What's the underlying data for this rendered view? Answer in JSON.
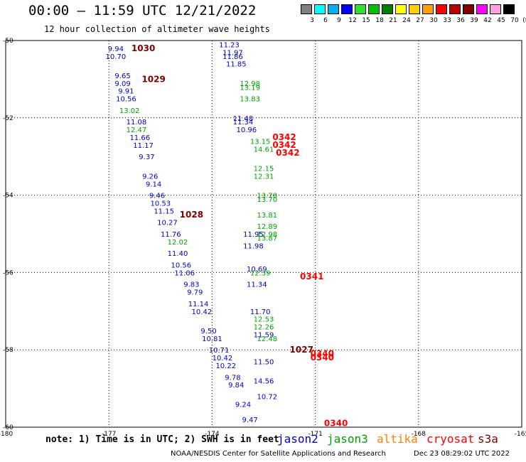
{
  "header": {
    "title": "00:00 — 11:59 UTC 12/21/2022",
    "subtitle": "12 hour collection of altimeter wave heights"
  },
  "colorbar": {
    "unit": "(ft)",
    "labels": [
      "3",
      "6",
      "9",
      "12",
      "15",
      "18",
      "21",
      "24",
      "27",
      "30",
      "33",
      "36",
      "39",
      "42",
      "45",
      "70"
    ],
    "colors": [
      "#808080",
      "#00ffff",
      "#00b0f0",
      "#0000ff",
      "#30e030",
      "#00c000",
      "#008000",
      "#ffff00",
      "#ffd000",
      "#ffa000",
      "#ff0000",
      "#c00000",
      "#800000",
      "#ff00ff",
      "#ffa0e0",
      "#000000"
    ]
  },
  "chart_data": {
    "type": "scatter",
    "title": "00:00 — 11:59 UTC 12/21/2022",
    "xlabel": "",
    "ylabel": "",
    "xlim": [
      -180,
      -165
    ],
    "ylim": [
      -60,
      -50
    ],
    "xticks": [
      "-180",
      "-177",
      "-174",
      "-171",
      "-168",
      "-165"
    ],
    "yticks": [
      "-50",
      "-52",
      "-54",
      "-56",
      "-58",
      "-60"
    ],
    "grid": true,
    "series": [
      {
        "name": "jason2",
        "color": "#0000c8",
        "points": [
          [
            -176.8,
            -50.2,
            "9.94"
          ],
          [
            -176.8,
            -50.4,
            "10.70"
          ],
          [
            -176.6,
            -50.9,
            "9.65"
          ],
          [
            -176.6,
            -51.1,
            "9.09"
          ],
          [
            -176.5,
            -51.3,
            "9.91"
          ],
          [
            -176.5,
            -51.5,
            "10.56"
          ],
          [
            -176.2,
            -52.1,
            "11.08"
          ],
          [
            -176.1,
            -52.5,
            "11.66"
          ],
          [
            -176.0,
            -52.7,
            "11.17"
          ],
          [
            -175.9,
            -53.0,
            "9.37"
          ],
          [
            -175.8,
            -53.5,
            "9.26"
          ],
          [
            -175.7,
            -53.7,
            "9.14"
          ],
          [
            -175.6,
            -54.0,
            "9.46"
          ],
          [
            -175.5,
            -54.2,
            "10.53"
          ],
          [
            -175.4,
            -54.4,
            "11.15"
          ],
          [
            -175.3,
            -54.7,
            "10.27"
          ],
          [
            -175.2,
            -55.0,
            "11.76"
          ],
          [
            -175.0,
            -55.5,
            "11.40"
          ],
          [
            -174.9,
            -55.8,
            "10.56"
          ],
          [
            -174.8,
            -56.0,
            "11.06"
          ],
          [
            -174.6,
            -56.3,
            "9.83"
          ],
          [
            -174.5,
            -56.5,
            "9.79"
          ],
          [
            -174.4,
            -56.8,
            "11.14"
          ],
          [
            -174.3,
            -57.0,
            "10.42"
          ],
          [
            -174.1,
            -57.5,
            "9.50"
          ],
          [
            -174.0,
            -57.7,
            "10.81"
          ],
          [
            -173.8,
            -58.0,
            "10.71"
          ],
          [
            -173.7,
            -58.2,
            "10.42"
          ],
          [
            -173.6,
            -58.4,
            "10.22"
          ],
          [
            -173.4,
            -58.7,
            "9.78"
          ],
          [
            -173.3,
            -58.9,
            "9.84"
          ],
          [
            -173.1,
            -59.4,
            "9.24"
          ],
          [
            -172.9,
            -59.8,
            "9.47"
          ],
          [
            -173.5,
            -50.1,
            "11.23"
          ],
          [
            -173.4,
            -50.3,
            "11.97"
          ],
          [
            -173.4,
            -50.4,
            "11.86"
          ],
          [
            -173.3,
            -50.6,
            "11.85"
          ],
          [
            -173.1,
            -52.0,
            "11.48"
          ],
          [
            -173.1,
            -52.1,
            "11.34"
          ],
          [
            -173.0,
            -52.3,
            "10.96"
          ],
          [
            -172.8,
            -55.0,
            "11.95"
          ],
          [
            -172.8,
            -55.3,
            "11.98"
          ],
          [
            -172.7,
            -55.9,
            "10.69"
          ],
          [
            -172.7,
            -56.3,
            "11.34"
          ],
          [
            -172.6,
            -57.0,
            "11.70"
          ],
          [
            -172.5,
            -57.6,
            "11.59"
          ],
          [
            -172.5,
            -58.3,
            "11.50"
          ],
          [
            -172.5,
            -58.8,
            "14.56"
          ],
          [
            -172.4,
            -59.2,
            "10.72"
          ]
        ]
      },
      {
        "name": "jason3",
        "color": "#00a000",
        "points": [
          [
            -176.4,
            -51.8,
            "13.02"
          ],
          [
            -176.2,
            -52.3,
            "12.47"
          ],
          [
            -175.0,
            -55.2,
            "12.02"
          ],
          [
            -172.9,
            -51.1,
            "12.98"
          ],
          [
            -172.9,
            -51.2,
            "13.19"
          ],
          [
            -172.9,
            -51.5,
            "13.83"
          ],
          [
            -172.6,
            -52.6,
            "13.15"
          ],
          [
            -172.5,
            -52.8,
            "14.61"
          ],
          [
            -172.5,
            -53.3,
            "12.15"
          ],
          [
            -172.5,
            -53.5,
            "12.31"
          ],
          [
            -172.4,
            -54.0,
            "13.78"
          ],
          [
            -172.4,
            -54.1,
            "13.70"
          ],
          [
            -172.4,
            -54.5,
            "13.81"
          ],
          [
            -172.4,
            -54.8,
            "12.89"
          ],
          [
            -172.4,
            -55.0,
            "12.98"
          ],
          [
            -172.4,
            -55.1,
            "13.87"
          ],
          [
            -172.6,
            -56.0,
            "12.39"
          ],
          [
            -172.5,
            -57.2,
            "12.53"
          ],
          [
            -172.5,
            -57.4,
            "12.26"
          ],
          [
            -172.4,
            -57.7,
            "12.48"
          ]
        ]
      },
      {
        "name": "altika",
        "color": "#ff8000",
        "points": []
      },
      {
        "name": "cryosat",
        "color": "#ff0000",
        "points": [
          [
            -171.9,
            -52.5,
            "0342"
          ],
          [
            -171.9,
            -52.7,
            "0342"
          ],
          [
            -171.8,
            -52.9,
            "0342"
          ],
          [
            -171.1,
            -56.1,
            "0341"
          ],
          [
            -170.8,
            -58.1,
            "0340"
          ],
          [
            -170.8,
            -58.2,
            "0340"
          ],
          [
            -170.4,
            -59.9,
            "0340"
          ]
        ]
      },
      {
        "name": "s3a",
        "color": "#800000",
        "points": [
          [
            -176.0,
            -50.2,
            "1030"
          ],
          [
            -175.7,
            -51.0,
            "1029"
          ],
          [
            -174.6,
            -54.5,
            "1028"
          ],
          [
            -171.4,
            -58.0,
            "1027"
          ]
        ]
      }
    ]
  },
  "footer": {
    "note": "note: 1) Time is in UTC; 2) SWH is in feet",
    "legend": [
      {
        "label": "jason2",
        "color": "#0000c8"
      },
      {
        "label": "jason3",
        "color": "#00a000"
      },
      {
        "label": "altika",
        "color": "#ff8000"
      },
      {
        "label": "cryosat",
        "color": "#ff0000"
      },
      {
        "label": "s3a",
        "color": "#800000"
      }
    ],
    "credit": "NOAA/NESDIS Center for Satellite Applications and Research",
    "timestamp": "Dec 23 08:29:02 UTC 2022"
  }
}
